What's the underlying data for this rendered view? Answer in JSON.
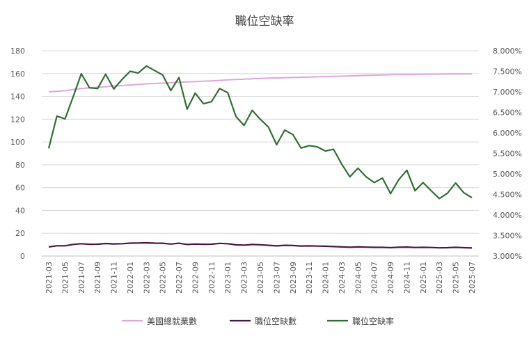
{
  "chart_data": {
    "type": "line",
    "title": "職位空缺率",
    "x": [
      "2021-03",
      "2021-04",
      "2021-05",
      "2021-06",
      "2021-07",
      "2021-08",
      "2021-09",
      "2021-10",
      "2021-11",
      "2021-12",
      "2022-01",
      "2022-02",
      "2022-03",
      "2022-04",
      "2022-05",
      "2022-06",
      "2022-07",
      "2022-08",
      "2022-09",
      "2022-10",
      "2022-11",
      "2022-12",
      "2023-01",
      "2023-02",
      "2023-03",
      "2023-04",
      "2023-05",
      "2023-06",
      "2023-07",
      "2023-08",
      "2023-09",
      "2023-10",
      "2023-11",
      "2023-12",
      "2024-01",
      "2024-02",
      "2024-03",
      "2024-04",
      "2024-05",
      "2024-06",
      "2024-07",
      "2024-08",
      "2024-09",
      "2024-10",
      "2024-11",
      "2024-12",
      "2025-01",
      "2025-02",
      "2025-03",
      "2025-04",
      "2025-05",
      "2025-06",
      "2025-07"
    ],
    "x_tick_labels": [
      "2021-03",
      "2021-05",
      "2021-07",
      "2021-09",
      "2021-11",
      "2022-01",
      "2022-03",
      "2022-05",
      "2022-07",
      "2022-09",
      "2022-11",
      "2023-01",
      "2023-03",
      "2023-05",
      "2023-07",
      "2023-09",
      "2023-11",
      "2024-01",
      "2024-03",
      "2024-05",
      "2024-07",
      "2024-09",
      "2024-11",
      "2025-01",
      "2025-03",
      "2025-05",
      "2025-07"
    ],
    "y_left": {
      "min": 0,
      "max": 180,
      "step": 20,
      "tick_labels": [
        "0",
        "20",
        "40",
        "60",
        "80",
        "100",
        "120",
        "140",
        "160",
        "180"
      ]
    },
    "y_right": {
      "min": 3.0,
      "max": 8.0,
      "step": 0.5,
      "tick_labels": [
        "3.000%",
        "3.500%",
        "4.000%",
        "4.500%",
        "5.000%",
        "5.500%",
        "6.000%",
        "6.500%",
        "7.000%",
        "7.500%",
        "8.000%"
      ]
    },
    "grid": true,
    "legend_position": "bottom",
    "series": [
      {
        "name": "美國總就業數",
        "axis": "left",
        "color": "#dda7dd",
        "values": [
          144.0,
          144.5,
          145.0,
          146.0,
          147.0,
          147.5,
          148.0,
          148.5,
          149.0,
          149.5,
          150.0,
          150.5,
          151.0,
          151.3,
          151.6,
          152.0,
          152.4,
          152.7,
          153.0,
          153.3,
          153.6,
          154.0,
          154.5,
          154.8,
          155.1,
          155.4,
          155.7,
          156.0,
          156.2,
          156.4,
          156.6,
          156.8,
          157.0,
          157.2,
          157.4,
          157.6,
          157.8,
          158.0,
          158.2,
          158.4,
          158.6,
          158.8,
          159.0,
          159.1,
          159.2,
          159.3,
          159.4,
          159.5,
          159.5,
          159.6,
          159.6,
          159.7,
          159.8
        ]
      },
      {
        "name": "職位空缺數",
        "axis": "left",
        "color": "#4b1645",
        "values": [
          8.0,
          9.0,
          9.0,
          10.2,
          10.8,
          10.3,
          10.4,
          11.0,
          10.6,
          10.8,
          11.3,
          11.4,
          11.6,
          11.3,
          11.2,
          10.5,
          11.2,
          10.1,
          10.5,
          10.3,
          10.4,
          11.1,
          10.8,
          9.8,
          9.6,
          10.1,
          9.9,
          9.4,
          8.9,
          9.4,
          9.2,
          8.8,
          8.9,
          8.7,
          8.6,
          8.3,
          8.0,
          7.7,
          8.0,
          7.8,
          7.6,
          7.6,
          7.3,
          7.7,
          7.9,
          7.5,
          7.6,
          7.5,
          7.2,
          7.3,
          7.6,
          7.3,
          7.1
        ]
      },
      {
        "name": "職位空缺率",
        "axis": "right",
        "color": "#2e7031",
        "values": [
          5.62,
          6.41,
          6.34,
          6.88,
          7.44,
          7.1,
          7.08,
          7.43,
          7.07,
          7.3,
          7.5,
          7.46,
          7.63,
          7.52,
          7.41,
          7.03,
          7.35,
          6.58,
          6.97,
          6.71,
          6.76,
          7.08,
          6.98,
          6.4,
          6.18,
          6.55,
          6.33,
          6.14,
          5.71,
          6.07,
          5.96,
          5.63,
          5.69,
          5.66,
          5.56,
          5.6,
          5.24,
          4.93,
          5.14,
          4.93,
          4.79,
          4.9,
          4.52,
          4.86,
          5.09,
          4.59,
          4.79,
          4.59,
          4.4,
          4.53,
          4.78,
          4.54,
          4.42
        ]
      }
    ]
  }
}
